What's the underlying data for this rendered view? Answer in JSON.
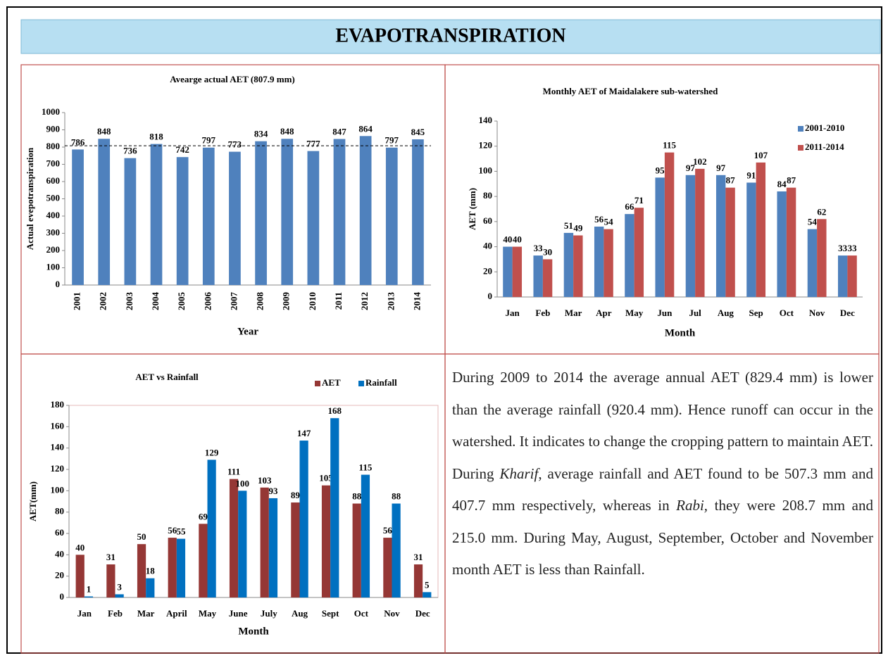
{
  "title": "EVAPOTRANSPIRATION",
  "chart_data": [
    {
      "type": "bar",
      "title": "Avearge actual AET (807.9 mm)",
      "average": 807.9,
      "categories": [
        "2001",
        "2002",
        "2003",
        "2004",
        "2005",
        "2006",
        "2007",
        "2008",
        "2009",
        "2010",
        "2011",
        "2012",
        "2013",
        "2014"
      ],
      "values": [
        786,
        848,
        736,
        818,
        742,
        797,
        773,
        834,
        848,
        777,
        847,
        864,
        797,
        845
      ],
      "color": "#4f81bd",
      "xlabel": "Year",
      "ylabel": "Actual evepotranspiration",
      "ylim": [
        0,
        1000
      ],
      "yticks": [
        0,
        100,
        200,
        300,
        400,
        500,
        600,
        700,
        800,
        900,
        1000
      ],
      "grid": false,
      "data_labels": true
    },
    {
      "type": "bar",
      "title": "Monthly AET of Maidalakere sub-watershed",
      "categories": [
        "Jan",
        "Feb",
        "Mar",
        "Apr",
        "May",
        "Jun",
        "Jul",
        "Aug",
        "Sep",
        "Oct",
        "Nov",
        "Dec"
      ],
      "series": [
        {
          "name": "2001-2010",
          "color": "#4f81bd",
          "values": [
            40,
            33,
            51,
            56,
            66,
            95,
            97,
            97,
            91,
            84,
            54,
            33
          ]
        },
        {
          "name": "2011-2014",
          "color": "#c0504d",
          "values": [
            40,
            30,
            49,
            54,
            71,
            115,
            102,
            87,
            107,
            87,
            62,
            33
          ]
        }
      ],
      "xlabel": "Month",
      "ylabel": "AET (mm)",
      "ylim": [
        0,
        140
      ],
      "yticks": [
        0,
        20,
        40,
        60,
        80,
        100,
        120,
        140
      ],
      "grid": false,
      "legend": "top-right",
      "data_labels": true
    },
    {
      "type": "bar",
      "title": "AET vs Rainfall",
      "categories": [
        "Jan",
        "Feb",
        "Mar",
        "April",
        "May",
        "June",
        "July",
        "Aug",
        "Sept",
        "Oct",
        "Nov",
        "Dec"
      ],
      "series": [
        {
          "name": "AET",
          "color": "#953735",
          "values": [
            40,
            31,
            50,
            56,
            69,
            111,
            103,
            89,
            105,
            88,
            56,
            31
          ]
        },
        {
          "name": "Rainfall",
          "color": "#0070c0",
          "values": [
            1,
            3,
            18,
            55,
            129,
            100,
            93,
            147,
            168,
            115,
            88,
            5
          ]
        }
      ],
      "xlabel": "Month",
      "ylabel": "AET(mm)",
      "ylim": [
        0,
        180
      ],
      "yticks": [
        0,
        20,
        40,
        60,
        80,
        100,
        120,
        140,
        160,
        180
      ],
      "grid": false,
      "legend": "top",
      "data_labels": true
    }
  ],
  "paragraph": [
    "During 2009 to 2014 the average annual AET (829.4 mm) is lower than the average rainfall (920.4 mm). Hence runoff can occur in the watershed. It indicates to change the cropping pattern to maintain AET. During ",
    "Kharif",
    ", average rainfall and AET found to be 507.3 mm and 407.7 mm respectively, whereas in ",
    "Rabi,",
    " they were 208.7 mm and 215.0 mm. During May, August, September, October and November month AET is less than Rainfall."
  ]
}
